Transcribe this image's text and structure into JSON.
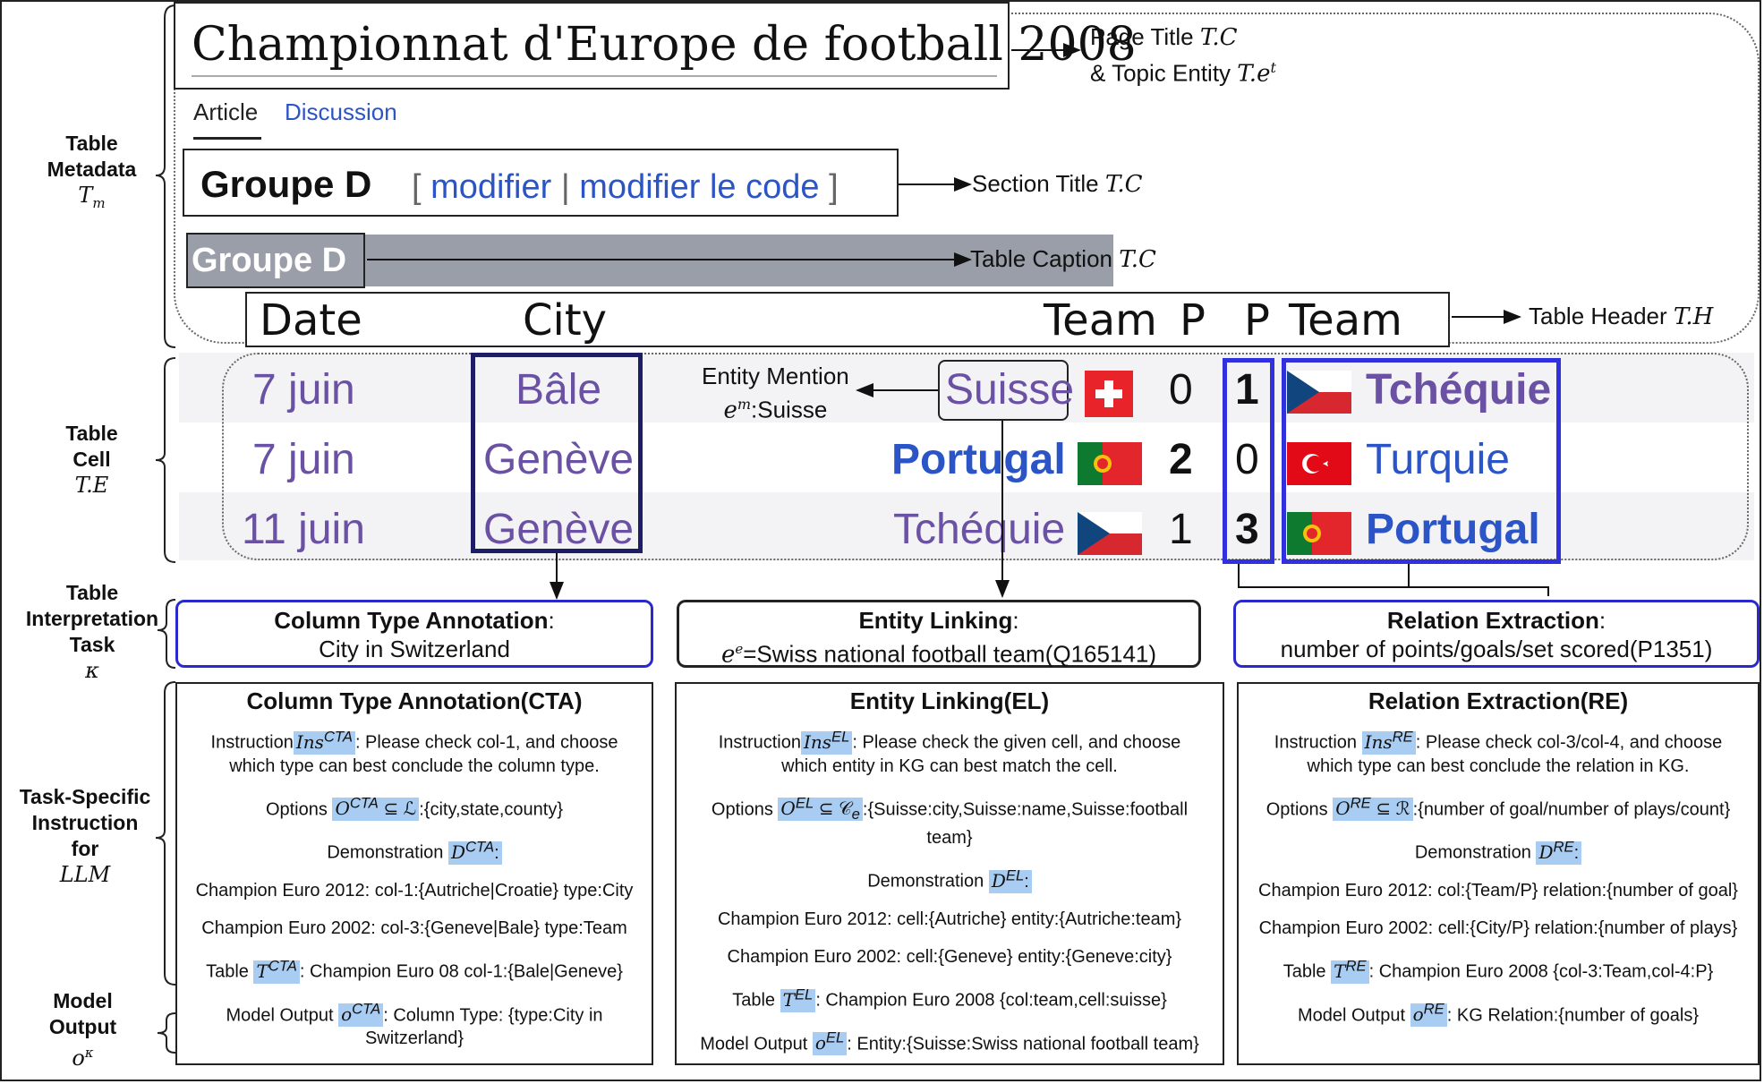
{
  "page": {
    "title": "Championnat d'Europe de football 2008",
    "tabs": [
      "Article",
      "Discussion"
    ],
    "section_title": "Groupe D",
    "section_links": {
      "open": "[",
      "modifier": "modifier",
      "sep": "|",
      "modifier_code": "modifier le code",
      "close": "]"
    },
    "caption": "Groupe D"
  },
  "header": [
    "Date",
    "City",
    "Team",
    "P",
    "P",
    "Team"
  ],
  "rows": [
    {
      "date": "7 juin",
      "city": "Bâle",
      "team1": "Suisse",
      "p1": "0",
      "p2": "1",
      "team2": "Tchéquie"
    },
    {
      "date": "7 juin",
      "city": "Genève",
      "team1": "Portugal",
      "p1": "2",
      "p2": "0",
      "team2": "Turquie"
    },
    {
      "date": "11 juin",
      "city": "Genève",
      "team1": "Tchéquie",
      "p1": "1",
      "p2": "3",
      "team2": "Portugal"
    }
  ],
  "annotations": {
    "page_title": "Page Title",
    "page_title_sym": "T.C",
    "topic_entity": "& Topic Entity",
    "topic_entity_sym": "T.e",
    "topic_entity_sup": "t",
    "section_title": "Section Title",
    "section_title_sym": "T.C",
    "table_caption": "Table Caption",
    "table_caption_sym": "T.C",
    "table_header": "Table Header",
    "table_header_sym": "T.H",
    "entity_mention_1": "Entity Mention",
    "entity_mention_sym": "e",
    "entity_mention_sup": "m",
    "entity_mention_2": ":Suisse"
  },
  "side_labels": {
    "metadata": [
      "Table",
      "Metadata"
    ],
    "metadata_sym": "T",
    "metadata_sub": "m",
    "cell": [
      "Table",
      "Cell"
    ],
    "cell_sym": "T.E",
    "task": [
      "Table",
      "Interpretation",
      "Task"
    ],
    "task_sym": "κ",
    "instruction": [
      "Task-Specific",
      "Instruction",
      "for"
    ],
    "instruction_sym": "LLM",
    "output": [
      "Model",
      "Output"
    ],
    "output_sym": "o",
    "output_sup": "κ"
  },
  "tasks": [
    {
      "title": "Column Type Annotation",
      "colon": ":",
      "body": "City in Switzerland"
    },
    {
      "title": "Entity Linking",
      "colon": ":",
      "sym": "e",
      "sup": "e",
      "body": "=Swiss national football team(Q165141)"
    },
    {
      "title": "Relation Extraction",
      "colon": ":",
      "body": "number of points/goals/set scored(P1351)"
    }
  ],
  "panels": [
    {
      "title": "Column Type Annotation(CTA)",
      "instr_label": "Instruction",
      "instr_sym": "Ins",
      "instr_sup": "CTA",
      "instr_text": ": Please check col-1, and choose which type can best conclude the column type.",
      "opt_label": "Options",
      "opt_sym": "O",
      "opt_sup": "CTA",
      "opt_set": " ⊆ ℒ",
      "opt_text": ":{city,state,county}",
      "demo_label": "Demonstration",
      "demo_sym": "D",
      "demo_sup": "CTA",
      "demo_colon": ":",
      "demo1": "Champion Euro 2012: col-1:{Autriche|Croatie} type:City",
      "demo2": "Champion Euro 2002: col-3:{Geneve|Bale} type:Team",
      "table_label": "Table",
      "table_sym": "T",
      "table_sup": "CTA",
      "table_text": ": Champion Euro 08 col-1:{Bale|Geneve}",
      "out_label": "Model Output",
      "out_sym": "o",
      "out_sup": "CTA",
      "out_text": ": Column Type: {type:City in Switzerland}"
    },
    {
      "title": "Entity Linking(EL)",
      "instr_label": "Instruction",
      "instr_sym": "Ins",
      "instr_sup": "EL",
      "instr_text": ": Please check the given cell, and choose which entity in KG can best match the cell.",
      "opt_label": "Options",
      "opt_sym": "O",
      "opt_sup": "EL",
      "opt_set": " ⊆ 𝒞",
      "opt_sub": "e",
      "opt_text": ":{Suisse:city,Suisse:name,Suisse:football team}",
      "demo_label": "Demonstration",
      "demo_sym": "D",
      "demo_sup": "EL",
      "demo_colon": ":",
      "demo1": "Champion Euro 2012: cell:{Autriche} entity:{Autriche:team}",
      "demo2": "Champion Euro 2002: cell:{Geneve} entity:{Geneve:city}",
      "table_label": "Table",
      "table_sym": "T",
      "table_sup": "EL",
      "table_text": ": Champion Euro 2008 {col:team,cell:suisse}",
      "out_label": "Model Output",
      "out_sym": "o",
      "out_sup": "EL",
      "out_text": ": Entity:{Suisse:Swiss national football team}"
    },
    {
      "title": "Relation Extraction(RE)",
      "instr_label": "Instruction",
      "instr_sym": "Ins",
      "instr_sup": "RE",
      "instr_text": ": Please check col-3/col-4, and choose which type can best conclude the relation in KG.",
      "opt_label": "Options",
      "opt_sym": "O",
      "opt_sup": "RE",
      "opt_set": " ⊆ ℛ",
      "opt_text": ":{number of goal/number of plays/count}",
      "demo_label": "Demonstration",
      "demo_sym": "D",
      "demo_sup": "RE",
      "demo_colon": ":",
      "demo1": "Champion Euro 2012: col:{Team/P} relation:{number of goal}",
      "demo2": "Champion Euro 2002: cell:{City/P} relation:{number of plays}",
      "table_label": "Table",
      "table_sym": "T",
      "table_sup": "RE",
      "table_text": ": Champion Euro 2008 {col-3:Team,col-4:P}",
      "out_label": "Model Output",
      "out_sym": "o",
      "out_sup": "RE",
      "out_text": ": KG Relation:{number of goals}"
    }
  ],
  "colors": {
    "purple": "#6a51a3",
    "blue": "#2b55c7",
    "task_border": "#2a2acc",
    "highlight": "#a9cdf2",
    "caption_bar": "#9a9ea8"
  }
}
